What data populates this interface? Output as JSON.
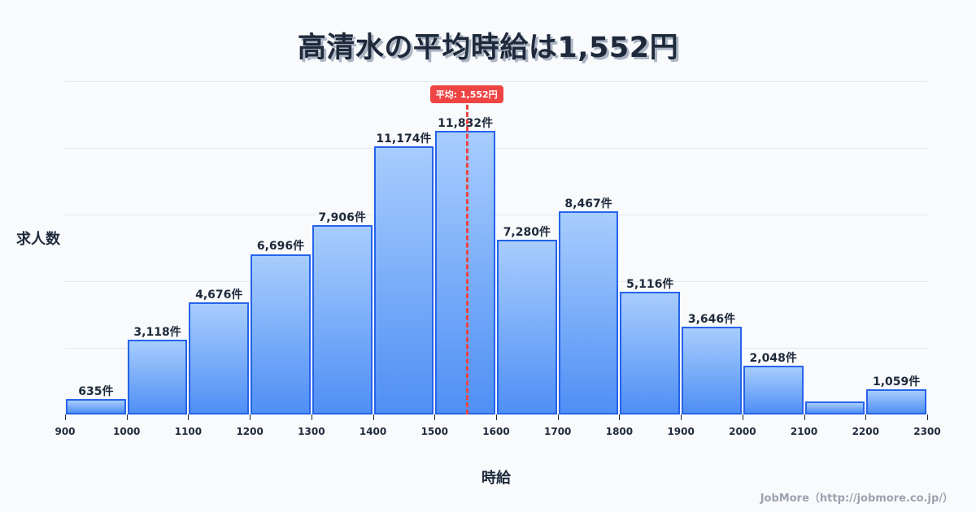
{
  "header": {
    "title": "高清水の平均時給は1,552円"
  },
  "axes": {
    "ylabel": "求人数",
    "xlabel": "時給"
  },
  "average": {
    "label": "平均: 1,552円",
    "value": 1552,
    "color": "#ef4444"
  },
  "credit": "JobMore（http://jobmore.co.jp/）",
  "colors": {
    "bar_border": "#2563eb",
    "bar_top": "#a8cdfd",
    "bar_bottom": "#4f8ff5",
    "grid": "#e2e8f0",
    "text": "#1e293b"
  },
  "chart_data": {
    "type": "bar",
    "title": "高清水の平均時給は1,552円",
    "xlabel": "時給",
    "ylabel": "求人数",
    "bins": [
      {
        "range": [
          900,
          1000
        ],
        "value": 635,
        "label": "635件"
      },
      {
        "range": [
          1000,
          1100
        ],
        "value": 3118,
        "label": "3,118件"
      },
      {
        "range": [
          1100,
          1200
        ],
        "value": 4676,
        "label": "4,676件"
      },
      {
        "range": [
          1200,
          1300
        ],
        "value": 6696,
        "label": "6,696件"
      },
      {
        "range": [
          1300,
          1400
        ],
        "value": 7906,
        "label": "7,906件"
      },
      {
        "range": [
          1400,
          1500
        ],
        "value": 11174,
        "label": "11,174件"
      },
      {
        "range": [
          1500,
          1600
        ],
        "value": 11832,
        "label": "11,832件"
      },
      {
        "range": [
          1600,
          1700
        ],
        "value": 7280,
        "label": "7,280件"
      },
      {
        "range": [
          1700,
          1800
        ],
        "value": 8467,
        "label": "8,467件"
      },
      {
        "range": [
          1800,
          1900
        ],
        "value": 5116,
        "label": "5,116件"
      },
      {
        "range": [
          1900,
          2000
        ],
        "value": 3646,
        "label": "3,646件"
      },
      {
        "range": [
          2000,
          2100
        ],
        "value": 2048,
        "label": "2,048件"
      },
      {
        "range": [
          2100,
          2200
        ],
        "value": 540,
        "label": ""
      },
      {
        "range": [
          2200,
          2300
        ],
        "value": 1059,
        "label": "1,059件"
      }
    ],
    "x_ticks": [
      "900",
      "1000",
      "1100",
      "1200",
      "1300",
      "1400",
      "1500",
      "1600",
      "1700",
      "1800",
      "1900",
      "2000",
      "2100",
      "2200",
      "2300"
    ],
    "xlim": [
      900,
      2300
    ],
    "ylim": [
      0,
      13900
    ],
    "grid": true,
    "average_line": {
      "x": 1552,
      "label": "平均: 1,552円",
      "style": "dashed",
      "color": "#ef4444"
    }
  }
}
